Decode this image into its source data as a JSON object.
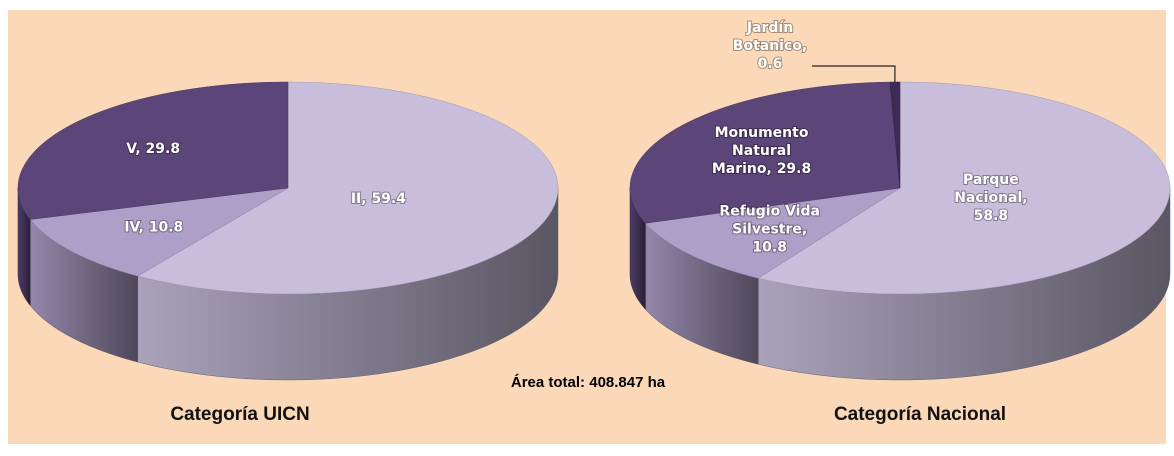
{
  "annotation": "Área total: 408.847 ha",
  "chart_data": [
    {
      "type": "pie",
      "title": "Categoría UICN",
      "values": [
        59.4,
        10.8,
        29.8
      ],
      "value_labels": [
        "II, 59.4",
        "IV, 10.8",
        "V, 29.8"
      ],
      "colors": [
        "#c8bedb",
        "#ae9fc8",
        "#5c4679"
      ]
    },
    {
      "type": "pie",
      "title": "Categoría Nacional",
      "values": [
        58.8,
        10.8,
        29.8,
        0.6
      ],
      "value_labels": [
        "Parque Nacional, 58.8",
        "Refugio Vida Silvestre, 10.8",
        "Monumento Natural Marino, 29.8",
        "Jardín Botanico, 0.6"
      ],
      "colors": [
        "#c8bedb",
        "#ae9fc8",
        "#5c4679",
        "#3d2b55"
      ]
    }
  ]
}
